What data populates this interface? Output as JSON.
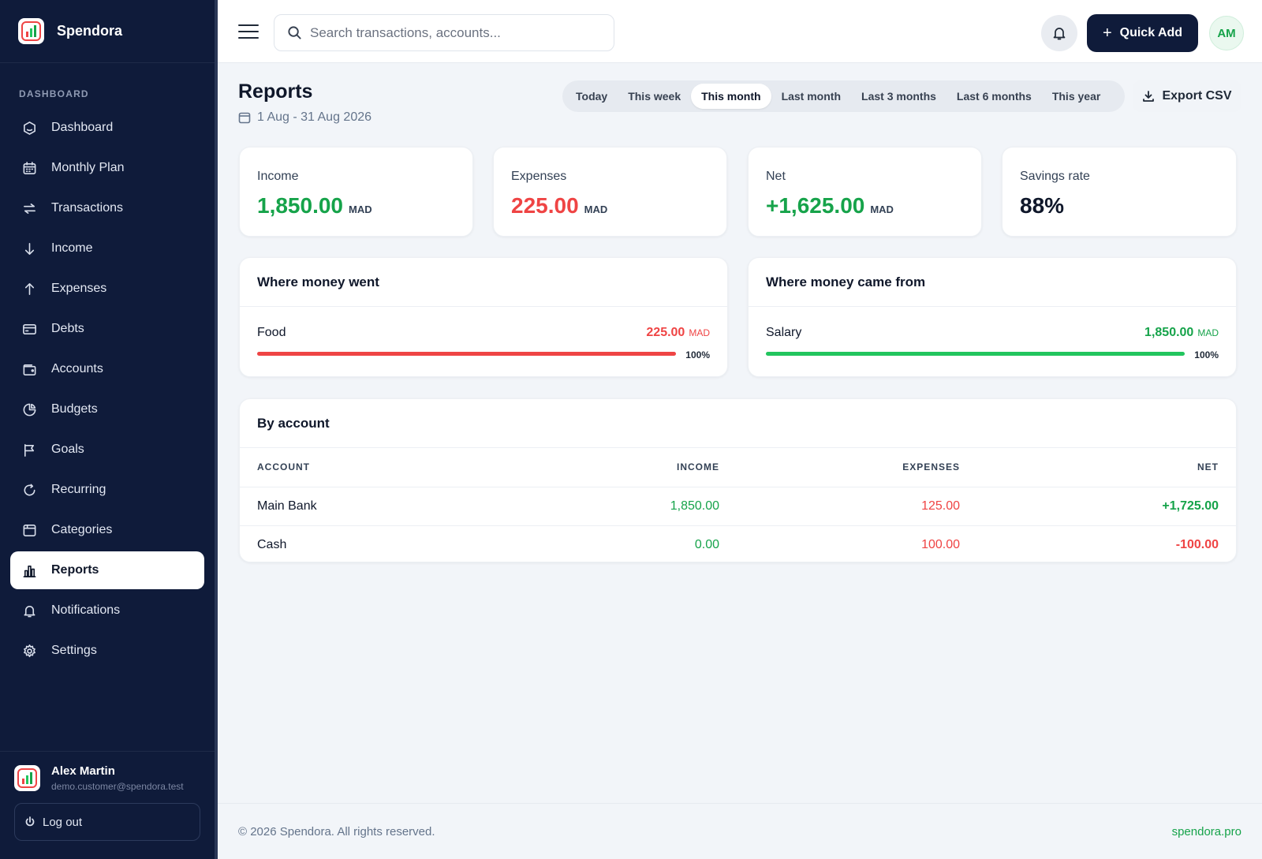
{
  "brand": {
    "name": "Spendora"
  },
  "sidebar": {
    "section_label": "DASHBOARD",
    "items": [
      {
        "label": "Dashboard",
        "icon": "dashboard-icon"
      },
      {
        "label": "Monthly Plan",
        "icon": "calendar-icon"
      },
      {
        "label": "Transactions",
        "icon": "transfer-icon"
      },
      {
        "label": "Income",
        "icon": "arrow-down-icon"
      },
      {
        "label": "Expenses",
        "icon": "arrow-up-icon"
      },
      {
        "label": "Debts",
        "icon": "credit-card-icon"
      },
      {
        "label": "Accounts",
        "icon": "wallet-icon"
      },
      {
        "label": "Budgets",
        "icon": "pie-chart-icon"
      },
      {
        "label": "Goals",
        "icon": "flag-icon"
      },
      {
        "label": "Recurring",
        "icon": "refresh-icon"
      },
      {
        "label": "Categories",
        "icon": "folder-icon"
      },
      {
        "label": "Reports",
        "icon": "bar-chart-icon",
        "active": true
      },
      {
        "label": "Notifications",
        "icon": "bell-icon"
      },
      {
        "label": "Settings",
        "icon": "gear-icon"
      }
    ],
    "user": {
      "name": "Alex Martin",
      "email": "demo.customer@spendora.test"
    },
    "logout_label": "Log out"
  },
  "topbar": {
    "search_placeholder": "Search transactions, accounts...",
    "quick_add_label": "Quick Add",
    "avatar_initials": "AM"
  },
  "page": {
    "title": "Reports",
    "date_range": "1 Aug - 31 Aug 2026",
    "range_tabs": [
      "Today",
      "This week",
      "This month",
      "Last month",
      "Last 3 months",
      "Last 6 months",
      "This year"
    ],
    "active_range": "This month",
    "export_label": "Export CSV"
  },
  "stats": [
    {
      "label": "Income",
      "value": "1,850.00",
      "currency": "MAD",
      "color": "#16a34a"
    },
    {
      "label": "Expenses",
      "value": "225.00",
      "currency": "MAD",
      "color": "#ef4444"
    },
    {
      "label": "Net",
      "value": "+1,625.00",
      "currency": "MAD",
      "color": "#16a34a"
    },
    {
      "label": "Savings rate",
      "value": "88%",
      "currency": "",
      "color": "#0f172a"
    }
  ],
  "where_went": {
    "title": "Where money went",
    "items": [
      {
        "name": "Food",
        "amount": "225.00",
        "currency": "MAD",
        "percent_label": "100%",
        "share": 1.0,
        "color": "#ef4444"
      }
    ]
  },
  "came_from": {
    "title": "Where money came from",
    "items": [
      {
        "name": "Salary",
        "amount": "1,850.00",
        "currency": "MAD",
        "percent_label": "100%",
        "share": 1.0,
        "color": "#22c55e"
      }
    ]
  },
  "by_account": {
    "title": "By account",
    "headers": {
      "account": "ACCOUNT",
      "income": "INCOME",
      "expenses": "EXPENSES",
      "net": "NET"
    },
    "rows": [
      {
        "account": "Main Bank",
        "income": "1,850.00",
        "expenses": "125.00",
        "net": "+1,725.00",
        "net_positive": true
      },
      {
        "account": "Cash",
        "income": "0.00",
        "expenses": "100.00",
        "net": "-100.00",
        "net_positive": false
      }
    ]
  },
  "footer": {
    "copyright": "© 2026 Spendora. All rights reserved.",
    "link": "spendora.pro"
  }
}
